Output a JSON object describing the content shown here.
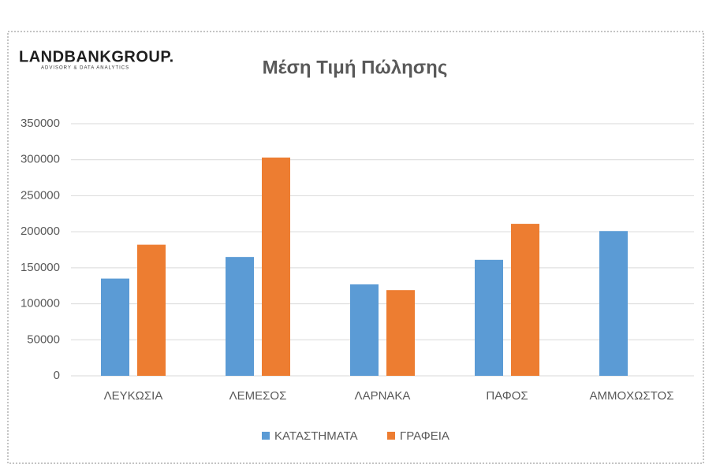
{
  "logo": {
    "name": "LANDBANKGROUP.",
    "tagline": "ADVISORY & DATA ANALYTICS"
  },
  "chart_data": {
    "type": "bar",
    "title": "Μέση Τιμή Πώλησης",
    "categories": [
      "ΛΕΥΚΩΣΙΑ",
      "ΛΕΜΕΣΟΣ",
      "ΛΑΡΝΑΚΑ",
      "ΠΑΦΟΣ",
      "ΑΜΜΟΧΩΣΤΟΣ"
    ],
    "series": [
      {
        "name": "ΚΑΤΑΣΤΗΜΑΤΑ",
        "color": "#5b9bd5",
        "values": [
          135000,
          165000,
          127000,
          161000,
          201000
        ]
      },
      {
        "name": "ΓΡΑΦΕΙΑ",
        "color": "#ed7d31",
        "values": [
          182000,
          303000,
          119000,
          211000,
          null
        ]
      }
    ],
    "ylim": [
      0,
      350000
    ],
    "yticks": [
      0,
      50000,
      100000,
      150000,
      200000,
      250000,
      300000,
      350000
    ],
    "grid": true,
    "legend": "bottom"
  }
}
